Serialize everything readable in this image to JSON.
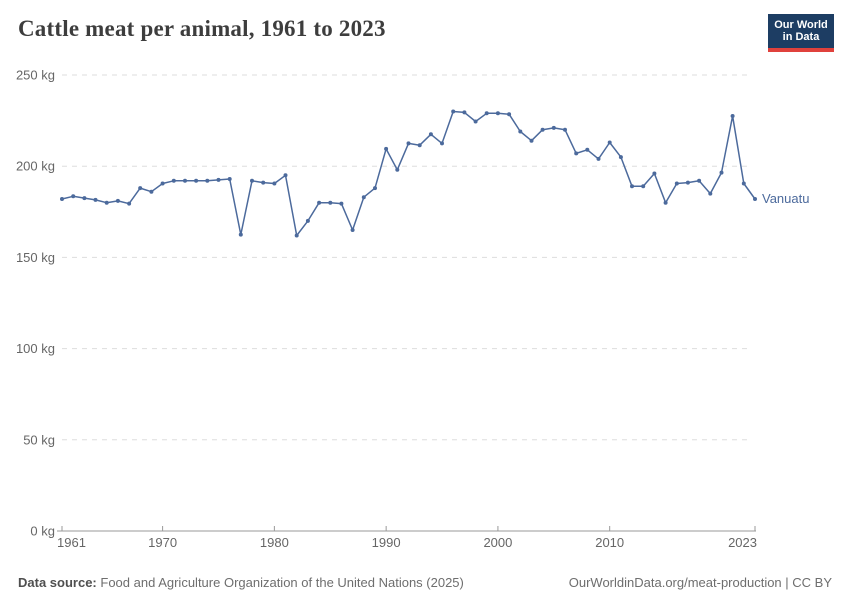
{
  "header": {
    "title": "Cattle meat per animal, 1961 to 2023",
    "logo": {
      "line1": "Our World",
      "line2": "in Data"
    }
  },
  "chart_data": {
    "type": "line",
    "title": "Cattle meat per animal, 1961 to 2023",
    "unit": "kg",
    "ylabel": "",
    "xlabel": "",
    "ylim": [
      0,
      250
    ],
    "yticks": [
      0,
      50,
      100,
      150,
      200,
      250
    ],
    "ytick_suffix": " kg",
    "xticks": [
      1961,
      1970,
      1980,
      1990,
      2000,
      2010,
      2023
    ],
    "grid": "horizontal-dashed",
    "legend": "entity-label-at-line-end",
    "x": [
      1961,
      1962,
      1963,
      1964,
      1965,
      1966,
      1967,
      1968,
      1969,
      1970,
      1971,
      1972,
      1973,
      1974,
      1975,
      1976,
      1977,
      1978,
      1979,
      1980,
      1981,
      1982,
      1983,
      1984,
      1985,
      1986,
      1987,
      1988,
      1989,
      1990,
      1991,
      1992,
      1993,
      1994,
      1995,
      1996,
      1997,
      1998,
      1999,
      2000,
      2001,
      2002,
      2003,
      2004,
      2005,
      2006,
      2007,
      2008,
      2009,
      2010,
      2011,
      2012,
      2013,
      2014,
      2015,
      2016,
      2017,
      2018,
      2019,
      2020,
      2021,
      2022,
      2023
    ],
    "series": [
      {
        "name": "Vanuatu",
        "color": "#4C6A9C",
        "values": [
          182,
          183.5,
          182.5,
          181.5,
          180,
          181,
          179.5,
          188,
          186,
          190.5,
          192,
          192,
          192,
          192,
          192.5,
          193,
          162.5,
          192,
          191,
          190.5,
          195,
          162,
          170,
          180,
          180,
          179.5,
          165,
          183,
          188,
          209.5,
          198,
          212.5,
          211.5,
          217.5,
          212.5,
          230,
          229.5,
          224.5,
          229,
          229,
          228.5,
          219,
          214,
          220,
          221,
          220,
          207,
          209,
          204,
          213,
          205,
          189,
          189,
          196,
          180,
          190.5,
          191,
          192,
          185,
          196.5,
          227.5,
          190.5,
          182
        ]
      }
    ]
  },
  "footer": {
    "source_label": "Data source:",
    "source_text": "Food and Agriculture Organization of the United Nations (2025)",
    "link_text": "OurWorldinData.org/meat-production | CC BY"
  },
  "colors": {
    "line": "#4C6A9C",
    "grid": "#dddddd",
    "axis": "#999999",
    "tick_label": "#666666",
    "title": "#3d3d3d",
    "logo_bg": "#1d3d63",
    "logo_bar": "#e0413c",
    "footer": "#6e6e6e"
  }
}
